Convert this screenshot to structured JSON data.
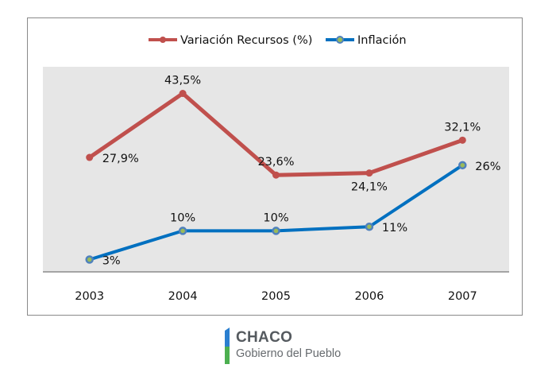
{
  "chart_data": {
    "type": "line",
    "title": "",
    "xlabel": "",
    "ylabel": "",
    "categories": [
      "2003",
      "2004",
      "2005",
      "2006",
      "2007"
    ],
    "ylim": [
      0,
      50
    ],
    "grid": false,
    "legend_position": "top-center",
    "series": [
      {
        "name": "Variación Recursos (%)",
        "color": "#c0504d",
        "marker_color": "#c0504d",
        "values": [
          27.9,
          43.5,
          23.6,
          24.1,
          32.1
        ],
        "labels": [
          "27,9%",
          "43,5%",
          "23,6%",
          "24,1%",
          "32,1%"
        ],
        "label_positions": [
          "right",
          "above",
          "above",
          "below",
          "above"
        ]
      },
      {
        "name": "Inflación",
        "color": "#0070c0",
        "marker_color": "#9bbb59",
        "marker_edge": "#4f81bd",
        "values": [
          3,
          10,
          10,
          11,
          26
        ],
        "labels": [
          "3%",
          "10%",
          "10%",
          "11%",
          "26%"
        ],
        "label_positions": [
          "right",
          "above",
          "above",
          "right",
          "right"
        ]
      }
    ],
    "plot_background": "#e6e6e6"
  },
  "logo": {
    "title": "CHACO",
    "subtitle": "Gobierno del Pueblo",
    "colors": {
      "blue": "#2a7fd0",
      "green": "#4caf50"
    }
  }
}
